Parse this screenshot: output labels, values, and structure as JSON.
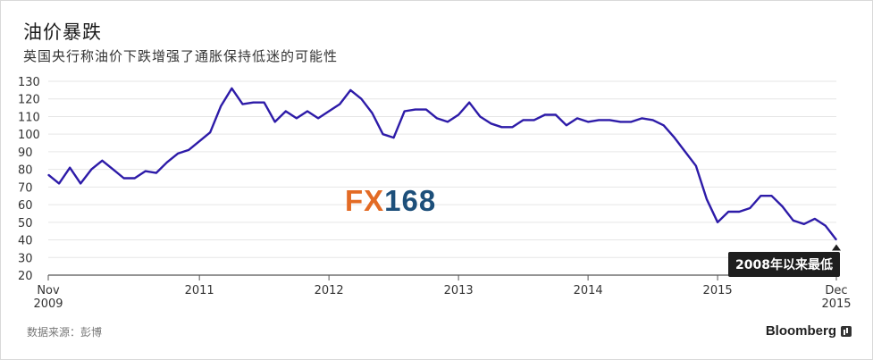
{
  "header": {
    "title": "油价暴跌",
    "subtitle": "英国央行称油价下跌增强了通胀保持低迷的可能性"
  },
  "footer": {
    "source": "数据来源：彭博",
    "brand": "Bloomberg"
  },
  "watermark": {
    "fx": "FX",
    "num": "168"
  },
  "annotation": {
    "text": "2008年以来最低"
  },
  "colors": {
    "line": "#2d1ba8",
    "grid": "#e6e6e6",
    "axis": "#555555",
    "callout_bg": "#1e1e1e"
  },
  "chart_data": {
    "type": "line",
    "title": "油价暴跌",
    "subtitle": "英国央行称油价下跌增强了通胀保持低迷的可能性",
    "xlabel": "",
    "ylabel": "",
    "ylim": [
      20,
      130
    ],
    "yticks": [
      "130",
      "120",
      "110",
      "100",
      "90",
      "80",
      "70",
      "60",
      "50",
      "40",
      "30",
      "20"
    ],
    "xticks": [
      {
        "label": "Nov",
        "label2": "2009",
        "month": 0
      },
      {
        "label": "2011",
        "label2": "",
        "month": 14
      },
      {
        "label": "2012",
        "label2": "",
        "month": 26
      },
      {
        "label": "2013",
        "label2": "",
        "month": 38
      },
      {
        "label": "2014",
        "label2": "",
        "month": 50
      },
      {
        "label": "2015",
        "label2": "",
        "month": 62
      },
      {
        "label": "Dec",
        "label2": "2015",
        "month": 73
      }
    ],
    "grid": true,
    "legend": "none",
    "series": [
      {
        "values": [
          77,
          72,
          81,
          72,
          80,
          85,
          80,
          75,
          75,
          79,
          78,
          84,
          89,
          91,
          96,
          101,
          116,
          126,
          117,
          118,
          118,
          107,
          113,
          109,
          113,
          109,
          113,
          117,
          125,
          120,
          112,
          100,
          98,
          113,
          114,
          114,
          109,
          107,
          111,
          118,
          110,
          106,
          104,
          104,
          108,
          108,
          111,
          111,
          105,
          109,
          107,
          108,
          108,
          107,
          107,
          109,
          108,
          105,
          98,
          90,
          82,
          63,
          50,
          56,
          56,
          58,
          65,
          65,
          59,
          51,
          49,
          52,
          48,
          40
        ]
      }
    ]
  }
}
